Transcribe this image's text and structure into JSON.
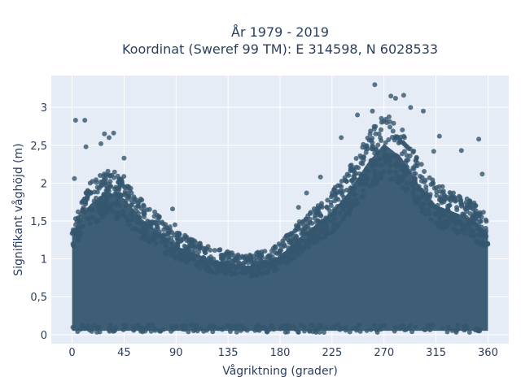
{
  "chart_data": {
    "type": "scatter",
    "title_line1": "År 1979 - 2019",
    "title_line2": "Koordinat (Sweref 99 TM): E 314598, N 6028533",
    "xlabel": "Vågriktning (grader)",
    "ylabel": "Signifikant våghöjd (m)",
    "xlim": [
      -18,
      378
    ],
    "ylim": [
      -0.12,
      3.42
    ],
    "x_ticks": [
      0,
      45,
      90,
      135,
      180,
      225,
      270,
      315,
      360
    ],
    "x_tick_labels": [
      "0",
      "45",
      "90",
      "135",
      "180",
      "225",
      "270",
      "315",
      "360"
    ],
    "y_ticks": [
      0,
      0.5,
      1,
      1.5,
      2,
      2.5,
      3
    ],
    "y_tick_labels": [
      "0",
      "0,5",
      "1",
      "1,5",
      "2",
      "2,5",
      "3"
    ],
    "grid": true,
    "marker_color": "#34566e",
    "plot_background": "#e5ecf6",
    "envelope": {
      "x": [
        0,
        15,
        30,
        45,
        60,
        75,
        90,
        105,
        120,
        135,
        150,
        165,
        180,
        195,
        210,
        225,
        240,
        255,
        270,
        285,
        300,
        315,
        330,
        345,
        360
      ],
      "y_max": [
        1.5,
        1.9,
        2.1,
        2.0,
        1.7,
        1.5,
        1.3,
        1.2,
        1.1,
        1.05,
        1.0,
        1.05,
        1.15,
        1.4,
        1.6,
        1.8,
        2.1,
        2.5,
        2.8,
        2.6,
        2.2,
        1.9,
        1.8,
        1.7,
        1.5
      ]
    },
    "outliers": [
      {
        "x": 3,
        "y": 2.83
      },
      {
        "x": 11,
        "y": 2.83
      },
      {
        "x": 28,
        "y": 2.65
      },
      {
        "x": 36,
        "y": 2.66
      },
      {
        "x": 32,
        "y": 2.6
      },
      {
        "x": 25,
        "y": 2.52
      },
      {
        "x": 45,
        "y": 2.33
      },
      {
        "x": 12,
        "y": 2.48
      },
      {
        "x": 2,
        "y": 2.06
      },
      {
        "x": 87,
        "y": 1.66
      },
      {
        "x": 89,
        "y": 1.45
      },
      {
        "x": 262,
        "y": 3.3
      },
      {
        "x": 276,
        "y": 3.15
      },
      {
        "x": 280,
        "y": 3.12
      },
      {
        "x": 287,
        "y": 3.16
      },
      {
        "x": 260,
        "y": 2.95
      },
      {
        "x": 304,
        "y": 2.95
      },
      {
        "x": 247,
        "y": 2.9
      },
      {
        "x": 293,
        "y": 3.0
      },
      {
        "x": 318,
        "y": 2.62
      },
      {
        "x": 352,
        "y": 2.58
      },
      {
        "x": 337,
        "y": 2.43
      },
      {
        "x": 313,
        "y": 2.42
      },
      {
        "x": 203,
        "y": 1.87
      },
      {
        "x": 215,
        "y": 2.08
      },
      {
        "x": 196,
        "y": 1.68
      },
      {
        "x": 355,
        "y": 2.12
      },
      {
        "x": 233,
        "y": 2.6
      }
    ]
  }
}
